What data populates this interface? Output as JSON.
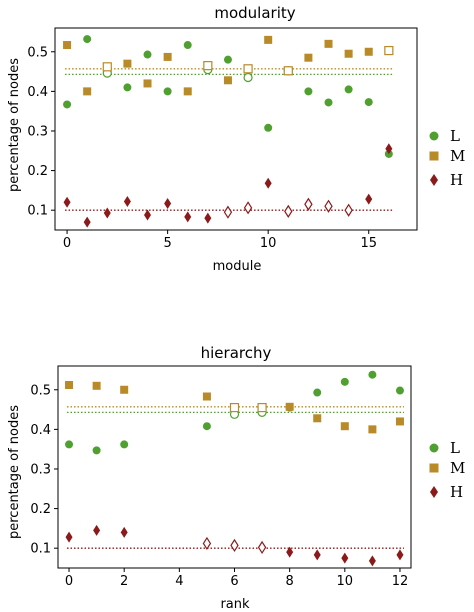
{
  "colors": {
    "L": "#4fa030",
    "M": "#b88a28",
    "H": "#8b1a1a"
  },
  "chart_data": [
    {
      "type": "scatter",
      "title": "modularity",
      "xlabel": "module",
      "ylabel": "percentage of nodes",
      "xlim": [
        -0.6,
        17.4
      ],
      "ylim": [
        0.05,
        0.56
      ],
      "xticks": [
        0,
        5,
        10,
        15
      ],
      "yticks": [
        0.1,
        0.2,
        0.3,
        0.4,
        0.5
      ],
      "legend_position": "right",
      "grid": false,
      "series": [
        {
          "name": "L",
          "marker": "circle",
          "x": [
            0,
            1,
            2,
            3,
            4,
            5,
            6,
            7,
            8,
            9,
            10,
            11,
            12,
            13,
            14,
            15,
            16
          ],
          "y": [
            0.367,
            0.532,
            0.446,
            0.41,
            0.493,
            0.4,
            0.517,
            0.455,
            0.48,
            0.435,
            0.308,
            0.452,
            0.4,
            0.372,
            0.405,
            0.373,
            0.242
          ],
          "hollow": [
            false,
            false,
            true,
            false,
            false,
            false,
            false,
            true,
            false,
            true,
            false,
            true,
            false,
            false,
            false,
            false,
            false
          ]
        },
        {
          "name": "M",
          "marker": "square",
          "x": [
            0,
            1,
            2,
            3,
            4,
            5,
            6,
            7,
            8,
            9,
            10,
            11,
            12,
            13,
            14,
            15,
            16
          ],
          "y": [
            0.517,
            0.4,
            0.462,
            0.47,
            0.42,
            0.487,
            0.4,
            0.465,
            0.428,
            0.457,
            0.53,
            0.452,
            0.485,
            0.52,
            0.495,
            0.5,
            0.503
          ],
          "hollow": [
            false,
            false,
            true,
            false,
            false,
            false,
            false,
            true,
            false,
            true,
            false,
            true,
            false,
            false,
            false,
            false,
            true
          ]
        },
        {
          "name": "H",
          "marker": "diamond",
          "x": [
            0,
            1,
            2,
            3,
            4,
            5,
            6,
            7,
            8,
            9,
            10,
            11,
            12,
            13,
            14,
            15,
            16
          ],
          "y": [
            0.12,
            0.07,
            0.093,
            0.122,
            0.088,
            0.117,
            0.083,
            0.08,
            0.095,
            0.106,
            0.168,
            0.097,
            0.115,
            0.11,
            0.1,
            0.128,
            0.255
          ],
          "hollow": [
            false,
            false,
            false,
            false,
            false,
            false,
            false,
            false,
            true,
            true,
            false,
            true,
            true,
            true,
            true,
            false,
            false
          ]
        }
      ],
      "reference_lines": [
        {
          "series": "L",
          "y": 0.443
        },
        {
          "series": "M",
          "y": 0.457
        },
        {
          "series": "H",
          "y": 0.1
        }
      ]
    },
    {
      "type": "scatter",
      "title": "hierarchy",
      "xlabel": "rank",
      "ylabel": "percentage of nodes",
      "xlim": [
        -0.4,
        12.4
      ],
      "ylim": [
        0.05,
        0.56
      ],
      "xticks": [
        0,
        2,
        4,
        6,
        8,
        10,
        12
      ],
      "yticks": [
        0.1,
        0.2,
        0.3,
        0.4,
        0.5
      ],
      "legend_position": "right",
      "grid": false,
      "series": [
        {
          "name": "L",
          "marker": "circle",
          "x": [
            0,
            1,
            2,
            5,
            6,
            7,
            8,
            9,
            10,
            11,
            12
          ],
          "y": [
            0.362,
            0.347,
            0.362,
            0.408,
            0.438,
            0.443,
            0.455,
            0.493,
            0.52,
            0.538,
            0.498
          ],
          "hollow": [
            false,
            false,
            false,
            false,
            true,
            true,
            false,
            false,
            false,
            false,
            false
          ]
        },
        {
          "name": "M",
          "marker": "square",
          "x": [
            0,
            1,
            2,
            5,
            6,
            7,
            8,
            9,
            10,
            11,
            12
          ],
          "y": [
            0.512,
            0.51,
            0.5,
            0.483,
            0.455,
            0.455,
            0.457,
            0.428,
            0.408,
            0.4,
            0.42
          ],
          "hollow": [
            false,
            false,
            false,
            false,
            true,
            true,
            false,
            false,
            false,
            false,
            false
          ]
        },
        {
          "name": "H",
          "marker": "diamond",
          "x": [
            0,
            1,
            2,
            5,
            6,
            7,
            8,
            9,
            10,
            11,
            12
          ],
          "y": [
            0.128,
            0.145,
            0.14,
            0.112,
            0.107,
            0.102,
            0.09,
            0.083,
            0.075,
            0.068,
            0.083
          ],
          "hollow": [
            false,
            false,
            false,
            true,
            true,
            true,
            false,
            false,
            false,
            false,
            false
          ]
        }
      ],
      "reference_lines": [
        {
          "series": "L",
          "y": 0.443
        },
        {
          "series": "M",
          "y": 0.457
        },
        {
          "series": "H",
          "y": 0.1
        }
      ]
    }
  ]
}
